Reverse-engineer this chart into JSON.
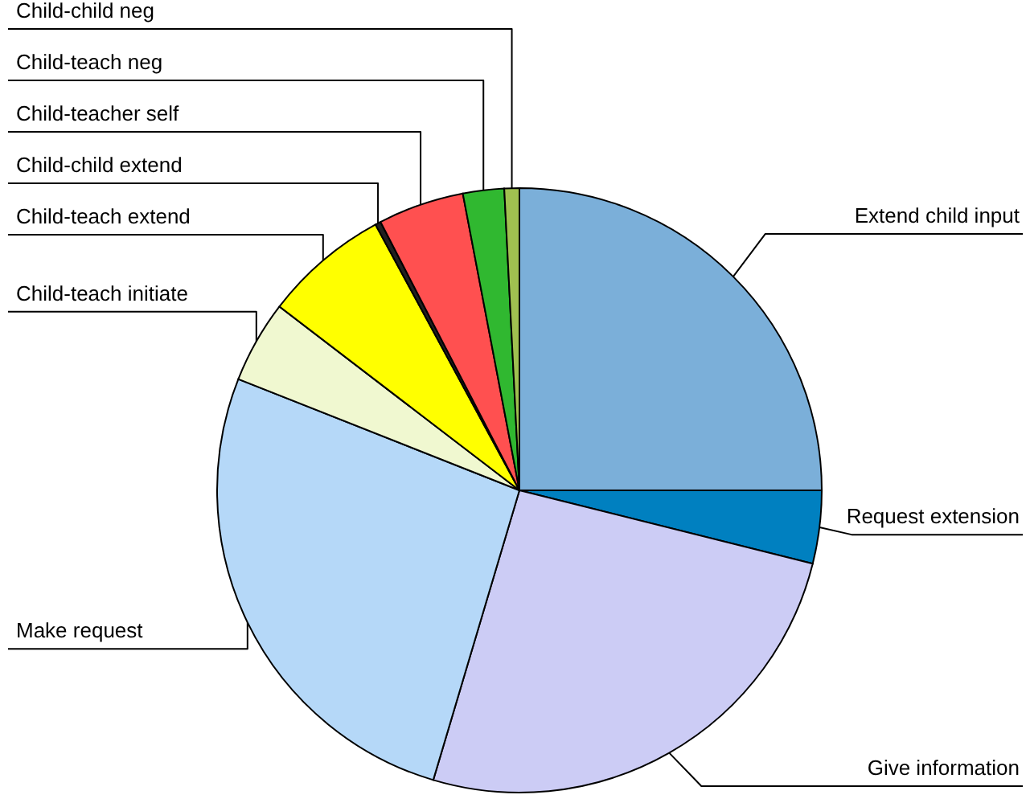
{
  "chart_data": {
    "type": "pie",
    "categories": [
      "Extend child input",
      "Request extension",
      "Give information",
      "Make request",
      "Child-teach initiate",
      "Child-teach extend",
      "Child-child extend",
      "Child-teacher self",
      "Child-teach neg",
      "Child-child neg"
    ],
    "values": [
      25,
      3.9,
      25.7,
      26.4,
      4.4,
      6.7,
      0.3,
      4.6,
      2.2,
      0.8
    ],
    "colors": [
      "#7bafd9",
      "#0080c0",
      "#ccccf5",
      "#b5d8f8",
      "#f0f8d0",
      "#ffff00",
      "#202020",
      "#ff5050",
      "#30b830",
      "#a0c050"
    ]
  }
}
